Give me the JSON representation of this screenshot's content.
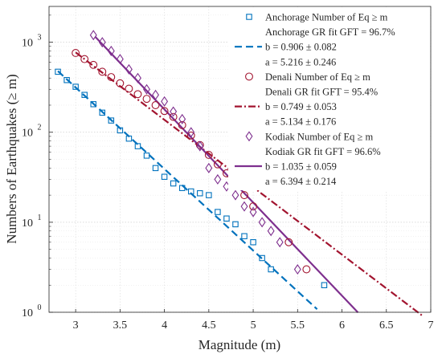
{
  "chart_data": {
    "type": "scatter",
    "xlabel": "Magnitude (m)",
    "ylabel": "Numbers of Earthquakes (≥ m)",
    "xlim": [
      2.7,
      7
    ],
    "ylim": [
      1,
      2500
    ],
    "y_scale": "log",
    "grid": true,
    "legend_position": "top-right",
    "x_ticks": [
      "3",
      "3.5",
      "4",
      "4.5",
      "5",
      "5.5",
      "6",
      "6.5",
      "7"
    ],
    "y_ticks": [
      {
        "base": "10",
        "exp": "0"
      },
      {
        "base": "10",
        "exp": "1"
      },
      {
        "base": "10",
        "exp": "2"
      },
      {
        "base": "10",
        "exp": "3"
      }
    ],
    "series": [
      {
        "name": "Anchorage Number of Eq ≥ m",
        "kind": "points",
        "marker": "square",
        "color": "#0072BD",
        "x": [
          2.8,
          2.9,
          3.0,
          3.1,
          3.2,
          3.3,
          3.4,
          3.5,
          3.6,
          3.7,
          3.8,
          3.9,
          4.0,
          4.1,
          4.2,
          4.3,
          4.4,
          4.5,
          4.6,
          4.7,
          4.8,
          4.9,
          5.0,
          5.1,
          5.2,
          5.8
        ],
        "y": [
          470,
          380,
          320,
          260,
          205,
          165,
          135,
          105,
          85,
          70,
          55,
          40,
          32,
          27,
          24,
          22,
          21,
          20,
          13,
          11,
          9.5,
          7,
          6,
          4,
          3,
          2
        ]
      },
      {
        "name": "Anchorage GR fit GFT = 96.7%",
        "kind": "fit",
        "style": "dashed",
        "color": "#0072BD",
        "b": 0.906,
        "a": 5.216,
        "x_range": [
          2.8,
          5.72
        ]
      },
      {
        "name": "Denali Number of Eq ≥ m",
        "kind": "points",
        "marker": "circle",
        "color": "#A2142F",
        "x": [
          3.0,
          3.1,
          3.2,
          3.3,
          3.4,
          3.5,
          3.6,
          3.7,
          3.8,
          3.9,
          4.0,
          4.1,
          4.2,
          4.3,
          4.4,
          4.5,
          4.6,
          4.7,
          4.8,
          4.9,
          5.0,
          5.4,
          5.6
        ],
        "y": [
          760,
          650,
          560,
          470,
          410,
          350,
          305,
          265,
          235,
          200,
          172,
          148,
          120,
          92,
          72,
          56,
          44,
          35,
          28,
          20,
          15,
          6,
          3
        ]
      },
      {
        "name": "Denali GR fit GFT = 95.4%",
        "kind": "fit",
        "style": "dashdot",
        "color": "#A2142F",
        "b": 0.749,
        "a": 5.134,
        "x_range": [
          3.0,
          6.9
        ]
      },
      {
        "name": "Kodiak Number of Eq ≥ m",
        "kind": "points",
        "marker": "diamond",
        "color": "#7E2F8E",
        "x": [
          3.2,
          3.3,
          3.4,
          3.5,
          3.6,
          3.7,
          3.8,
          3.9,
          4.0,
          4.1,
          4.2,
          4.3,
          4.4,
          4.5,
          4.6,
          4.7,
          4.8,
          4.9,
          5.0,
          5.1,
          5.2,
          5.3,
          5.5
        ],
        "y": [
          1200,
          1000,
          800,
          650,
          500,
          400,
          300,
          260,
          220,
          170,
          140,
          100,
          70,
          40,
          30,
          25,
          20,
          15,
          13,
          10,
          8,
          6,
          3
        ]
      },
      {
        "name": "Kodiak GR fit GFT = 96.6%",
        "kind": "fit",
        "style": "solid",
        "color": "#7E2F8E",
        "b": 1.035,
        "a": 6.394,
        "x_range": [
          3.22,
          6.18
        ]
      }
    ],
    "legend": [
      {
        "series": 0,
        "text": "Anchorage Number of Eq ≥ m"
      },
      {
        "series": 1,
        "text": "Anchorage GR fit GFT = 96.7%"
      },
      {
        "series": 1,
        "text": "b = 0.906 ± 0.082"
      },
      {
        "series": null,
        "text": "a = 5.216 ± 0.246"
      },
      {
        "series": 2,
        "text": "Denali Number of Eq ≥ m"
      },
      {
        "series": 3,
        "text": "Denali GR fit GFT = 95.4%"
      },
      {
        "series": 3,
        "text": "b = 0.749 ± 0.053"
      },
      {
        "series": null,
        "text": "a = 5.134 ± 0.176"
      },
      {
        "series": 4,
        "text": "Kodiak Number of Eq ≥ m"
      },
      {
        "series": 5,
        "text": "Kodiak GR fit GFT = 96.6%"
      },
      {
        "series": 5,
        "text": "b = 1.035 ± 0.059"
      },
      {
        "series": null,
        "text": "a = 6.394 ± 0.214"
      }
    ]
  }
}
